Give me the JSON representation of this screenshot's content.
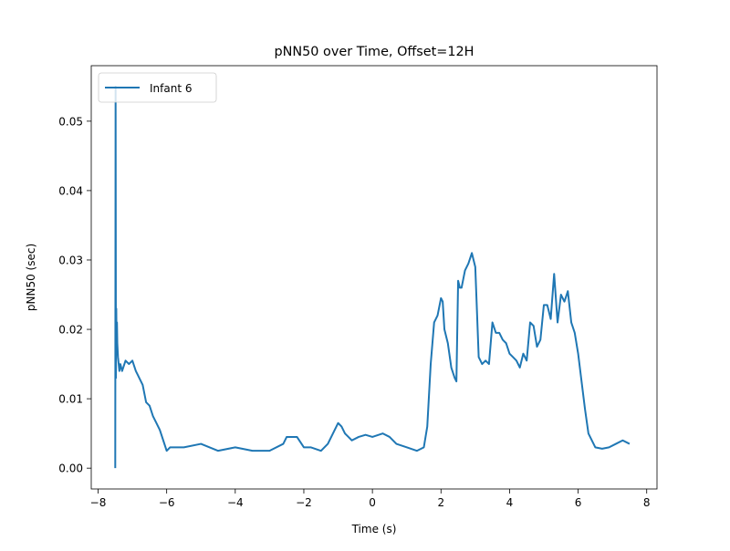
{
  "chart_data": {
    "type": "line",
    "title": "pNN50 over Time, Offset=12H",
    "xlabel": "Time (s)",
    "ylabel": "pNN50 (sec)",
    "xlim": [
      -8.2,
      8.3
    ],
    "ylim": [
      -0.003,
      0.058
    ],
    "x_ticks": [
      -8,
      -6,
      -4,
      -2,
      0,
      2,
      4,
      6,
      8
    ],
    "x_tick_labels": [
      "−8",
      "−6",
      "−4",
      "−2",
      "0",
      "2",
      "4",
      "6",
      "8"
    ],
    "y_ticks": [
      0.0,
      0.01,
      0.02,
      0.03,
      0.04,
      0.05
    ],
    "y_tick_labels": [
      "0.00",
      "0.01",
      "0.02",
      "0.03",
      "0.04",
      "0.05"
    ],
    "grid": false,
    "legend": {
      "placement": "upper-left",
      "entries": [
        "Infant 6"
      ]
    },
    "series": [
      {
        "name": "Infant 6",
        "color": "#1f77b4",
        "x": [
          -7.5,
          -7.49,
          -7.48,
          -7.47,
          -7.46,
          -7.45,
          -7.44,
          -7.42,
          -7.4,
          -7.38,
          -7.35,
          -7.3,
          -7.2,
          -7.1,
          -7.0,
          -6.9,
          -6.85,
          -6.8,
          -6.7,
          -6.6,
          -6.5,
          -6.4,
          -6.3,
          -6.2,
          -6.1,
          -6.0,
          -5.9,
          -5.5,
          -5.0,
          -4.5,
          -4.0,
          -3.5,
          -3.0,
          -2.6,
          -2.5,
          -2.4,
          -2.2,
          -2.0,
          -1.8,
          -1.5,
          -1.3,
          -1.1,
          -1.0,
          -0.9,
          -0.8,
          -0.6,
          -0.4,
          -0.2,
          0.0,
          0.3,
          0.5,
          0.7,
          1.0,
          1.3,
          1.5,
          1.6,
          1.7,
          1.8,
          1.9,
          2.0,
          2.05,
          2.1,
          2.2,
          2.3,
          2.4,
          2.45,
          2.5,
          2.55,
          2.6,
          2.7,
          2.8,
          2.9,
          3.0,
          3.1,
          3.2,
          3.3,
          3.4,
          3.5,
          3.6,
          3.7,
          3.8,
          3.9,
          4.0,
          4.1,
          4.2,
          4.3,
          4.4,
          4.5,
          4.6,
          4.7,
          4.8,
          4.9,
          5.0,
          5.1,
          5.2,
          5.3,
          5.4,
          5.5,
          5.6,
          5.7,
          5.8,
          5.9,
          6.0,
          6.1,
          6.2,
          6.3,
          6.5,
          6.7,
          6.9,
          7.1,
          7.3,
          7.5
        ],
        "y": [
          0.0,
          0.055,
          0.013,
          0.023,
          0.017,
          0.021,
          0.018,
          0.016,
          0.015,
          0.014,
          0.015,
          0.014,
          0.0155,
          0.015,
          0.0155,
          0.014,
          0.0135,
          0.013,
          0.012,
          0.0095,
          0.009,
          0.0075,
          0.0065,
          0.0055,
          0.004,
          0.0025,
          0.003,
          0.003,
          0.0035,
          0.0025,
          0.003,
          0.0025,
          0.0025,
          0.0035,
          0.0045,
          0.0045,
          0.0045,
          0.003,
          0.003,
          0.0025,
          0.0035,
          0.0055,
          0.0065,
          0.006,
          0.005,
          0.004,
          0.0045,
          0.0048,
          0.0045,
          0.005,
          0.0045,
          0.0035,
          0.003,
          0.0025,
          0.003,
          0.006,
          0.015,
          0.021,
          0.022,
          0.0245,
          0.024,
          0.02,
          0.018,
          0.0145,
          0.013,
          0.0125,
          0.027,
          0.026,
          0.026,
          0.0285,
          0.0295,
          0.031,
          0.029,
          0.016,
          0.015,
          0.0155,
          0.015,
          0.021,
          0.0195,
          0.0195,
          0.0185,
          0.018,
          0.0165,
          0.016,
          0.0155,
          0.0145,
          0.0165,
          0.0155,
          0.021,
          0.0205,
          0.0175,
          0.0185,
          0.0235,
          0.0235,
          0.0215,
          0.028,
          0.021,
          0.025,
          0.024,
          0.0255,
          0.021,
          0.0195,
          0.0165,
          0.0125,
          0.0085,
          0.005,
          0.003,
          0.0028,
          0.003,
          0.0035,
          0.004,
          0.0035
        ]
      }
    ]
  }
}
